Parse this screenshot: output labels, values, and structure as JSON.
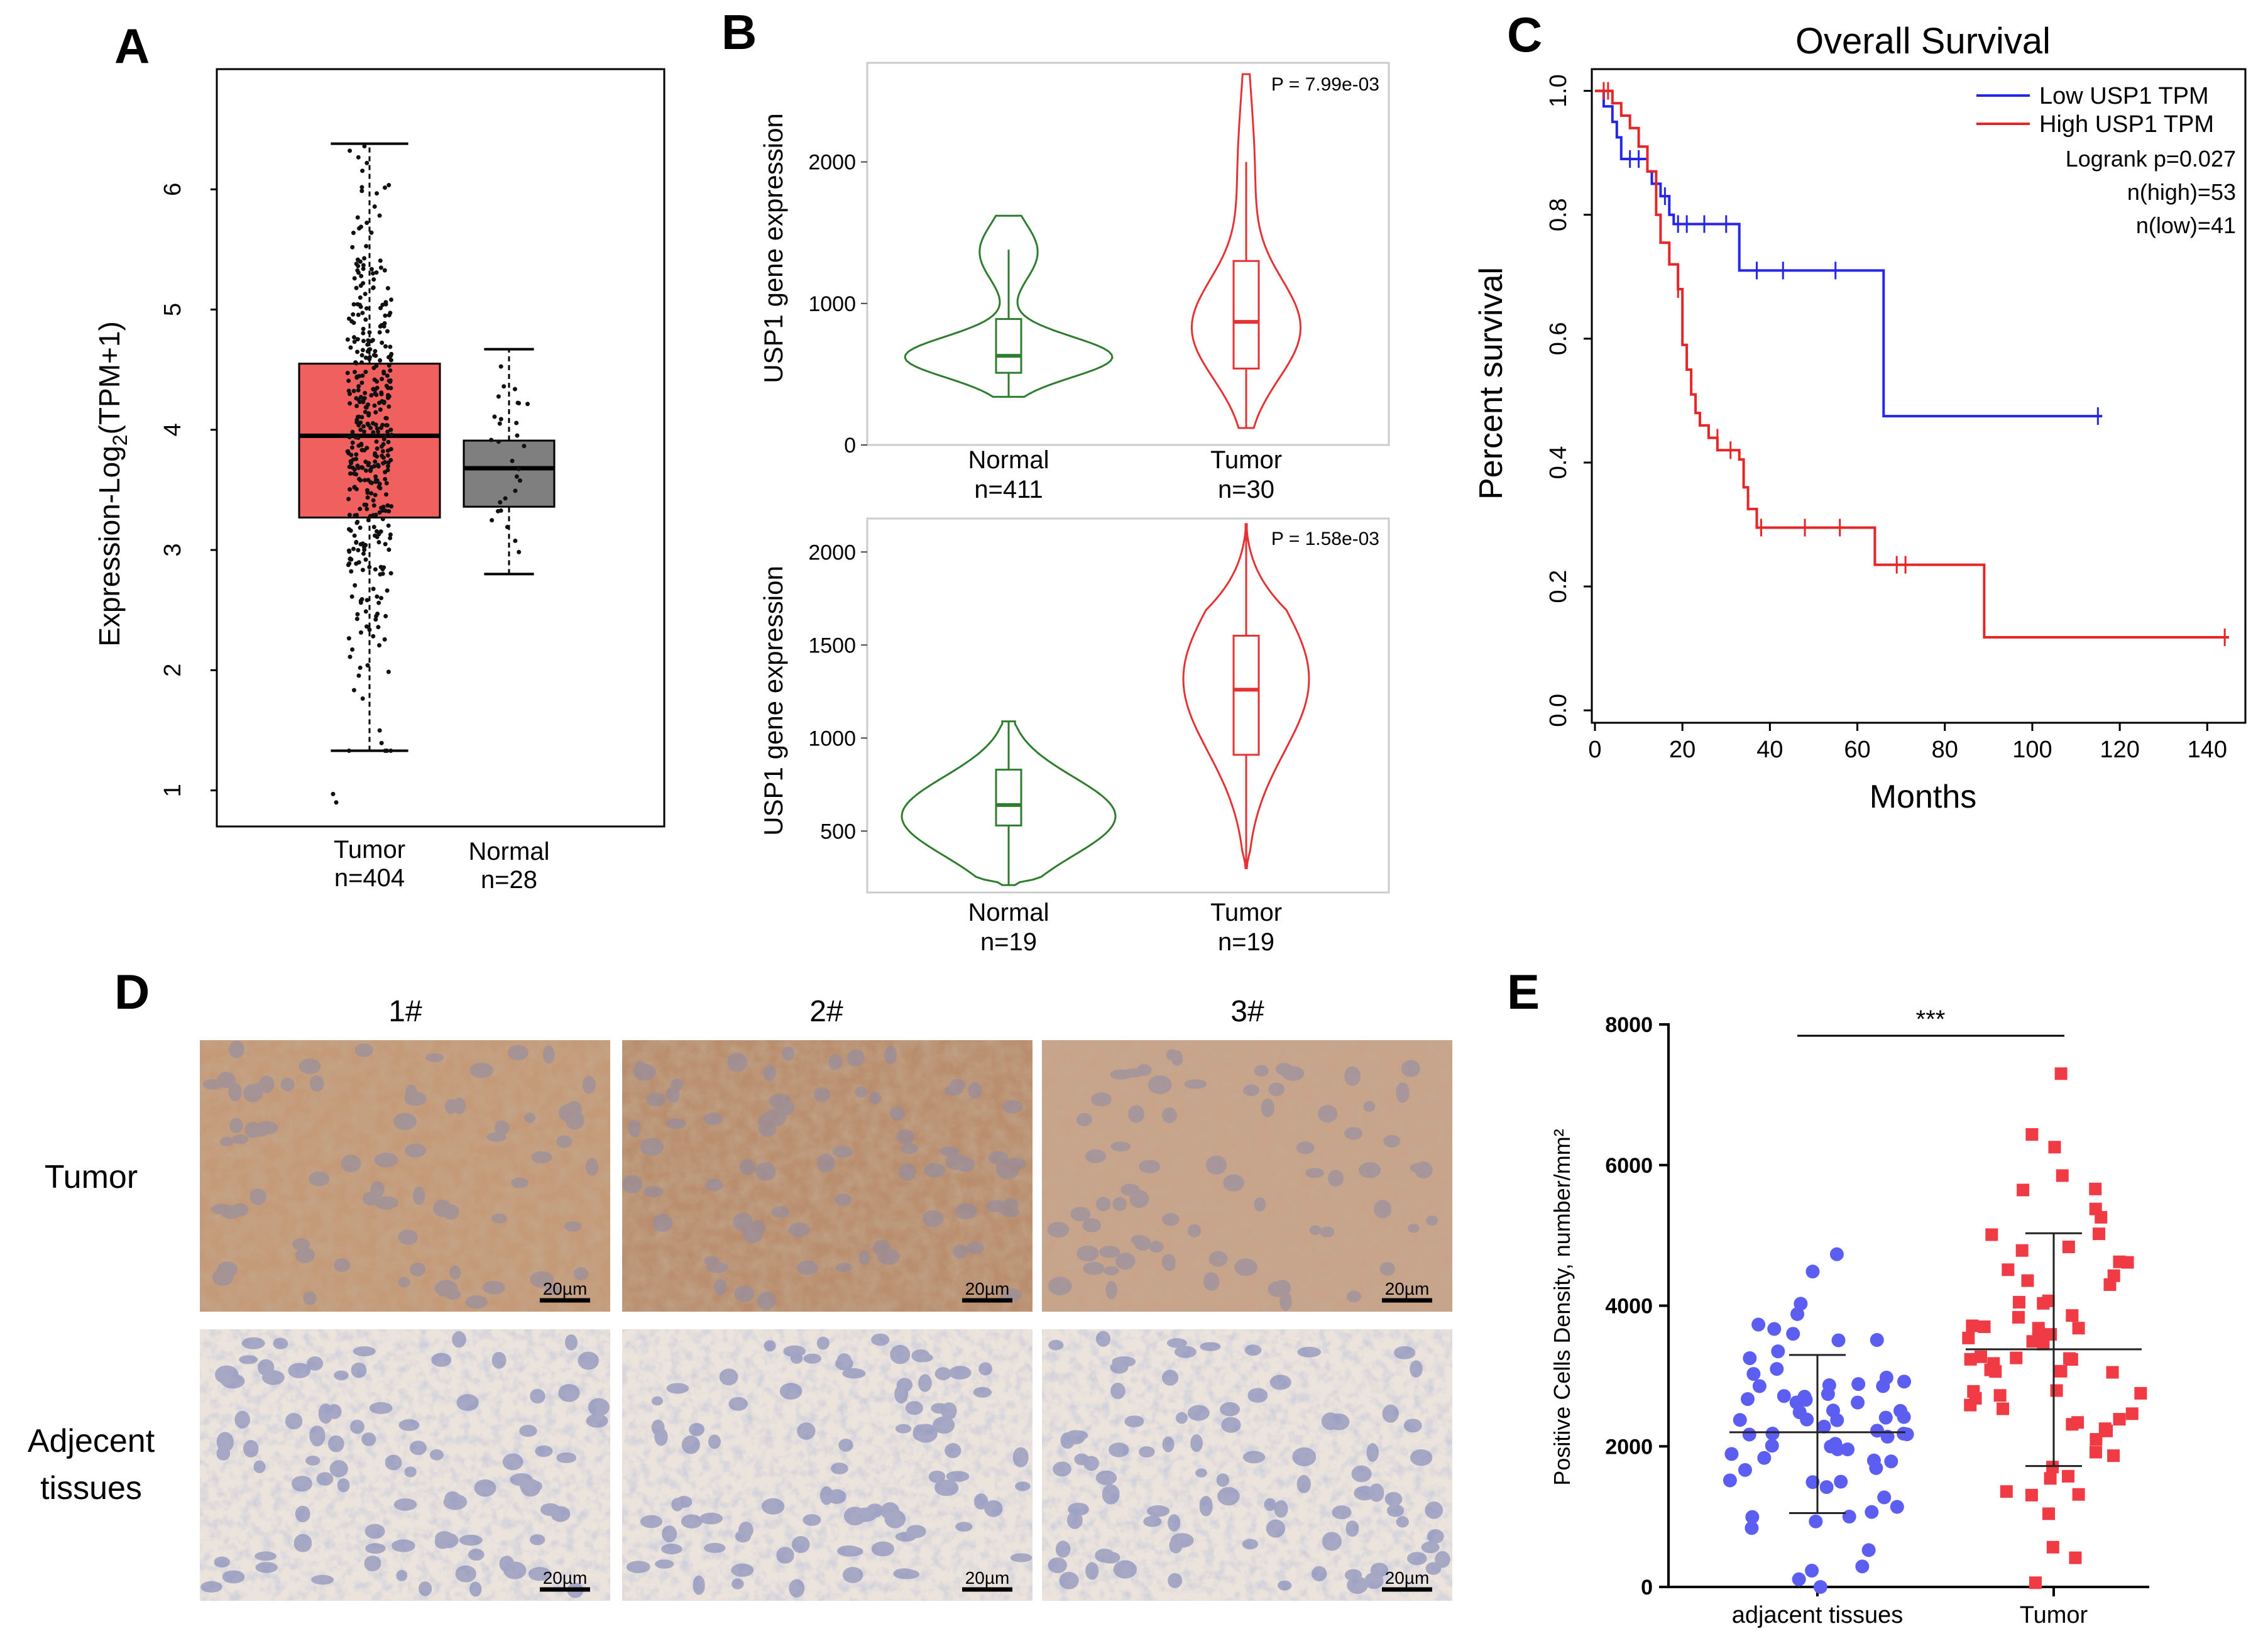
{
  "panels": {
    "A": {
      "letter": "A",
      "ylabel_main": "Expression-Log",
      "ylabel_sub": "2",
      "ylabel_tail": "(TPM+1)",
      "groups": [
        {
          "name": "Tumor",
          "n": "n=404",
          "color": "#f0605e"
        },
        {
          "name": "Normal",
          "n": "n=28",
          "color": "#7f7f7f"
        }
      ]
    },
    "B": {
      "letter": "B",
      "top": {
        "ylabel": "USP1 gene expression",
        "pvalue": "P = 7.99e-03",
        "groups": [
          {
            "name": "Normal",
            "n": "n=411"
          },
          {
            "name": "Tumor",
            "n": "n=30"
          }
        ]
      },
      "bottom": {
        "ylabel": "USP1 gene expression",
        "pvalue": "P = 1.58e-03",
        "groups": [
          {
            "name": "Normal",
            "n": "n=19"
          },
          {
            "name": "Tumor",
            "n": "n=19"
          }
        ]
      }
    },
    "C": {
      "letter": "C",
      "title": "Overall Survival",
      "xlabel": "Months",
      "ylabel": "Percent survival",
      "legend": {
        "low": "Low USP1 TPM",
        "high": "High USP1 TPM",
        "logrank": "Logrank p=0.027",
        "n_high": "n(high)=53",
        "n_low": "n(low)=41"
      }
    },
    "D": {
      "letter": "D",
      "columns": [
        "1#",
        "2#",
        "3#"
      ],
      "rows": [
        "Tumor",
        "Adjecent",
        "tissues"
      ],
      "scalebar": "20µm"
    },
    "E": {
      "letter": "E",
      "ylabel": "Positive Cells Density, number/mm²",
      "significance": "***",
      "groups": [
        {
          "name": "adjacent tissues",
          "color": "#5b5ef0"
        },
        {
          "name": "Tumor",
          "color": "#f03a44"
        }
      ]
    }
  },
  "chart_data": [
    {
      "id": "A",
      "type": "boxplot",
      "ylabel": "Expression-Log2(TPM+1)",
      "ylim": [
        0.7,
        7.0
      ],
      "yticks": [
        "1",
        "2",
        "3",
        "4",
        "5",
        "6"
      ],
      "series": [
        {
          "name": "Tumor",
          "n": 404,
          "min": 1.33,
          "q1": 3.27,
          "median": 3.95,
          "q3": 4.55,
          "max": 6.38
        },
        {
          "name": "Normal",
          "n": 28,
          "min": 2.8,
          "q1": 3.36,
          "median": 3.68,
          "q3": 3.91,
          "max": 4.67
        }
      ]
    },
    {
      "id": "B-top",
      "type": "violin",
      "ylabel": "USP1 gene expression",
      "ylim": [
        0,
        2700
      ],
      "yticks": [
        "0",
        "1000",
        "2000"
      ],
      "pvalue": "7.99e-03",
      "series": [
        {
          "name": "Normal",
          "n": 411,
          "min": 340,
          "q1": 510,
          "median": 630,
          "q3": 890,
          "max": 1380,
          "range": [
            340,
            1620
          ]
        },
        {
          "name": "Tumor",
          "n": 30,
          "min": 120,
          "q1": 540,
          "median": 870,
          "q3": 1300,
          "max": 2000,
          "range": [
            120,
            2620
          ]
        }
      ]
    },
    {
      "id": "B-bottom",
      "type": "violin",
      "ylabel": "USP1 gene expression",
      "ylim": [
        170,
        2180
      ],
      "yticks": [
        "500",
        "1000",
        "1500",
        "2000"
      ],
      "pvalue": "1.58e-03",
      "series": [
        {
          "name": "Normal",
          "n": 19,
          "min": 210,
          "q1": 530,
          "median": 640,
          "q3": 830,
          "max": 1090,
          "range": [
            210,
            1090
          ]
        },
        {
          "name": "Tumor",
          "n": 19,
          "min": 300,
          "q1": 910,
          "median": 1260,
          "q3": 1550,
          "max": 2150,
          "range": [
            300,
            2150
          ]
        }
      ]
    },
    {
      "id": "C",
      "type": "line",
      "title": "Overall Survival",
      "xlabel": "Months",
      "ylabel": "Percent survival",
      "xlim": [
        0,
        148
      ],
      "ylim": [
        -0.02,
        1.03
      ],
      "xticks": [
        "0",
        "20",
        "40",
        "60",
        "80",
        "100",
        "120",
        "140"
      ],
      "yticks": [
        "0.0",
        "0.2",
        "0.4",
        "0.6",
        "0.8",
        "1.0"
      ],
      "series": [
        {
          "name": "Low USP1 TPM",
          "color": "#2626e6",
          "steps": [
            [
              0,
              1.0
            ],
            [
              2,
              0.975
            ],
            [
              4,
              0.95
            ],
            [
              5,
              0.925
            ],
            [
              6,
              0.89
            ],
            [
              12,
              0.87
            ],
            [
              13,
              0.85
            ],
            [
              15,
              0.83
            ],
            [
              17,
              0.8
            ],
            [
              18,
              0.785
            ],
            [
              33,
              0.71
            ],
            [
              66,
              0.475
            ],
            [
              116,
              0.475
            ]
          ],
          "censor": [
            [
              8,
              0.89
            ],
            [
              10,
              0.89
            ],
            [
              14,
              0.85
            ],
            [
              16,
              0.83
            ],
            [
              19,
              0.785
            ],
            [
              21,
              0.785
            ],
            [
              25,
              0.785
            ],
            [
              30,
              0.785
            ],
            [
              37,
              0.71
            ],
            [
              43,
              0.71
            ],
            [
              55,
              0.71
            ],
            [
              115,
              0.475
            ]
          ]
        },
        {
          "name": "High USP1 TPM",
          "color": "#e62626",
          "steps": [
            [
              0,
              1.0
            ],
            [
              4,
              0.98
            ],
            [
              6,
              0.96
            ],
            [
              8,
              0.94
            ],
            [
              10,
              0.91
            ],
            [
              12,
              0.87
            ],
            [
              14,
              0.8
            ],
            [
              15,
              0.755
            ],
            [
              17,
              0.72
            ],
            [
              19,
              0.68
            ],
            [
              20,
              0.59
            ],
            [
              21,
              0.55
            ],
            [
              22,
              0.51
            ],
            [
              23,
              0.48
            ],
            [
              24,
              0.46
            ],
            [
              26,
              0.44
            ],
            [
              28,
              0.42
            ],
            [
              33,
              0.405
            ],
            [
              34,
              0.36
            ],
            [
              35,
              0.325
            ],
            [
              37,
              0.295
            ],
            [
              64,
              0.235
            ],
            [
              89,
              0.118
            ],
            [
              145,
              0.118
            ]
          ],
          "censor": [
            [
              2,
              1.0
            ],
            [
              3,
              1.0
            ],
            [
              19,
              0.68
            ],
            [
              28,
              0.44
            ],
            [
              31,
              0.42
            ],
            [
              38,
              0.295
            ],
            [
              48,
              0.295
            ],
            [
              56,
              0.295
            ],
            [
              69,
              0.235
            ],
            [
              71,
              0.235
            ],
            [
              144,
              0.118
            ]
          ]
        }
      ]
    },
    {
      "id": "E",
      "type": "scatter",
      "ylabel": "Positive Cells Density, number/mm²",
      "ylim": [
        0,
        8000
      ],
      "yticks": [
        "0",
        "2000",
        "4000",
        "6000",
        "8000"
      ],
      "categories": [
        "adjacent tissues",
        "Tumor"
      ],
      "series": [
        {
          "name": "adjacent tissues",
          "mean": 2200,
          "sd_low": 1050,
          "sd_high": 3300
        },
        {
          "name": "Tumor",
          "mean": 3380,
          "sd_low": 1720,
          "sd_high": 5030
        }
      ]
    }
  ]
}
